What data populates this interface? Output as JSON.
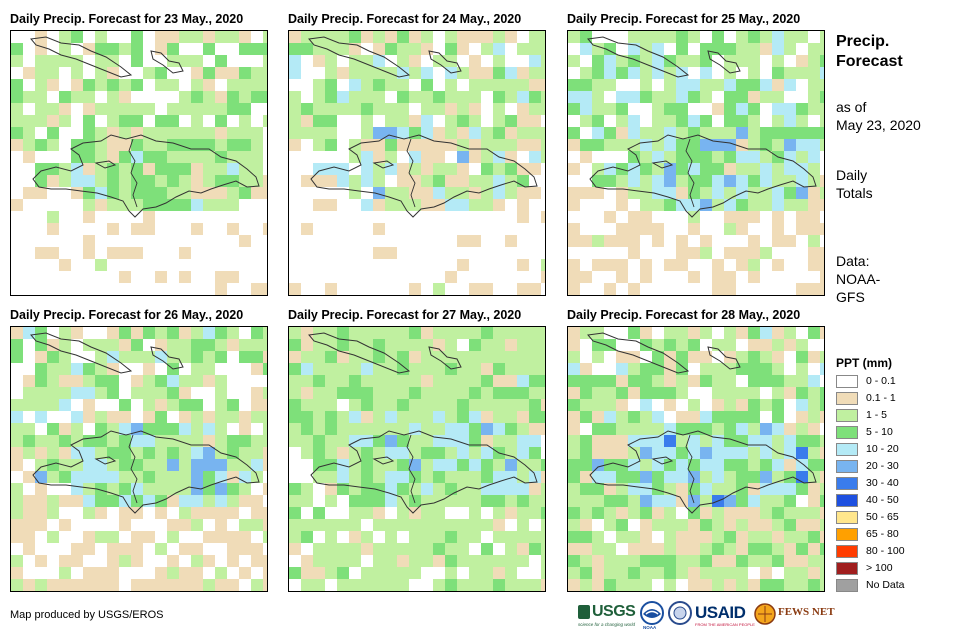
{
  "panels": [
    {
      "title": "Daily Precip. Forecast for 23 May., 2020"
    },
    {
      "title": "Daily Precip. Forecast for 24 May., 2020"
    },
    {
      "title": "Daily Precip. Forecast for 25 May., 2020"
    },
    {
      "title": "Daily Precip. Forecast for 26 May., 2020"
    },
    {
      "title": "Daily Precip. Forecast for 27 May., 2020"
    },
    {
      "title": "Daily Precip. Forecast for 28 May., 2020"
    }
  ],
  "sidebar": {
    "title_line1": "Precip.",
    "title_line2": "Forecast",
    "asof_line1": "as of",
    "asof_line2": "May 23, 2020",
    "totals_line1": "Daily",
    "totals_line2": "Totals",
    "source_line1": "Data:",
    "source_line2": "NOAA-",
    "source_line3": "GFS"
  },
  "legend": {
    "title": "PPT (mm)",
    "items": [
      {
        "label": "0 - 0.1",
        "color": "#ffffff"
      },
      {
        "label": "0.1 - 1",
        "color": "#f0dcb8"
      },
      {
        "label": "1 - 5",
        "color": "#c0f0a0"
      },
      {
        "label": "5 - 10",
        "color": "#7ee07a"
      },
      {
        "label": "10 - 20",
        "color": "#b4eaf6"
      },
      {
        "label": "20 - 30",
        "color": "#78b4f0"
      },
      {
        "label": "30 - 40",
        "color": "#3a7cec"
      },
      {
        "label": "40 - 50",
        "color": "#1e50e0"
      },
      {
        "label": "50 - 65",
        "color": "#ffe68c"
      },
      {
        "label": "65 - 80",
        "color": "#ffa000"
      },
      {
        "label": "80 - 100",
        "color": "#ff3c00"
      },
      {
        "label": "> 100",
        "color": "#a01e1e"
      },
      {
        "label": "No Data",
        "color": "#a0a0a0"
      }
    ]
  },
  "credit": "Map produced by USGS/EROS",
  "logos": {
    "usgs": "USGS",
    "usgs_tagline": "science for a changing world",
    "noaa": "NOAA",
    "usaid": "USAID",
    "usaid_tagline": "FROM THE AMERICAN PEOPLE",
    "fewsnet": "FEWS NET"
  },
  "icons": [
    "usgs-logo",
    "noaa-logo",
    "dhs-seal",
    "usaid-logo",
    "fewsnet-logo"
  ]
}
